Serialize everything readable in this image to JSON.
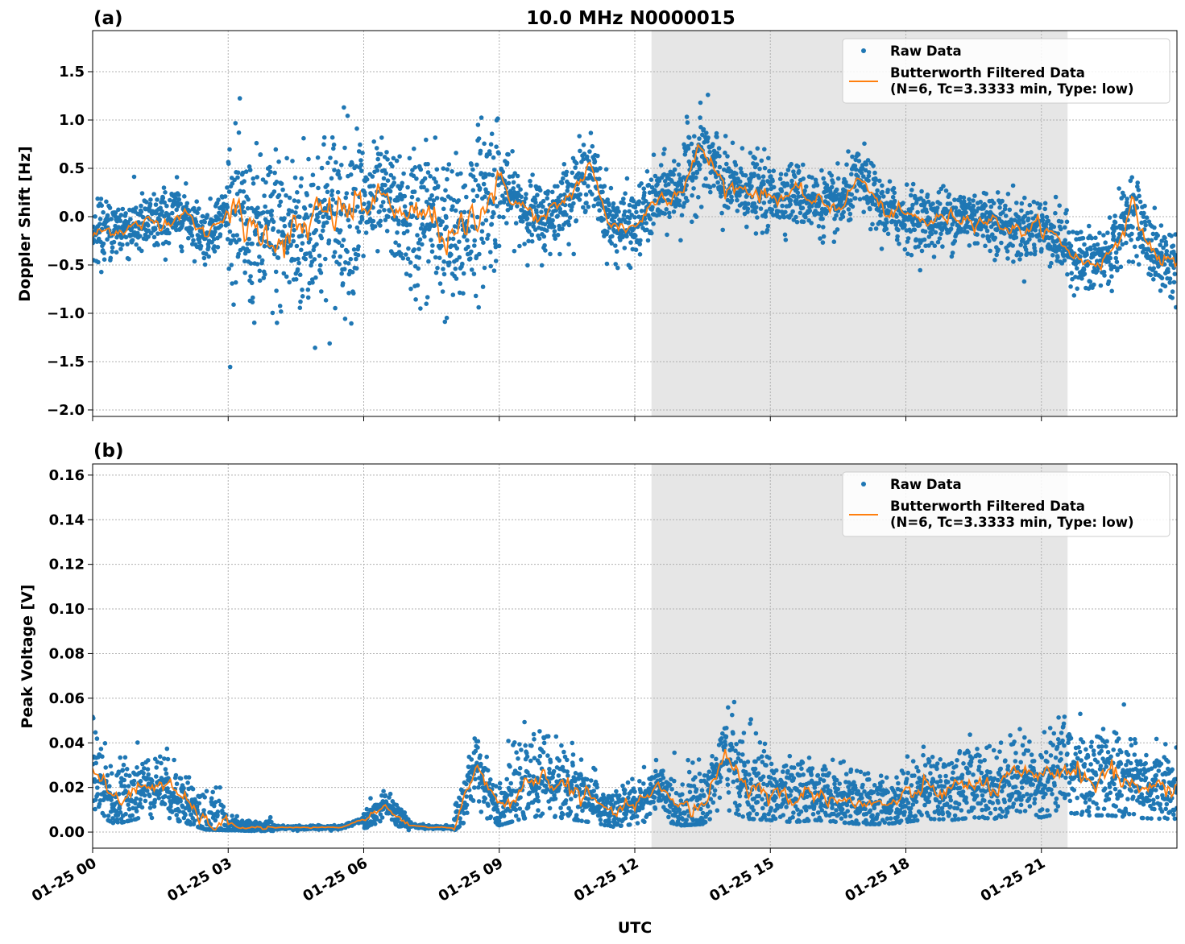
{
  "title": "10.0 MHz N0000015",
  "chart_data": [
    {
      "type": "scatter+line",
      "panel_label": "(a)",
      "ylabel": "Doppler Shift [Hz]",
      "xlabel": "",
      "ylim": [
        -2.067,
        1.925
      ],
      "yticks": [
        -2.0,
        -1.5,
        -1.0,
        -0.5,
        0.0,
        0.5,
        1.0,
        1.5
      ],
      "ytick_labels": [
        "−2.0",
        "−1.5",
        "−1.0",
        "−0.5",
        "0.0",
        "0.5",
        "1.0",
        "1.5"
      ],
      "grid": true,
      "legend_placement": "top-right",
      "legend": [
        "Raw Data",
        "Butterworth Filtered Data",
        "(N=6, Tc=3.3333 min, Type: low)"
      ],
      "shaded_span_hours_utc": [
        12.37,
        21.58
      ],
      "filtered_hours": [
        0,
        0.5,
        1,
        1.5,
        2,
        2.5,
        3,
        3.5,
        4,
        4.5,
        5,
        5.5,
        6,
        6.5,
        7,
        7.5,
        8,
        8.5,
        9,
        9.5,
        10,
        10.5,
        11,
        11.5,
        12,
        12.5,
        13,
        13.5,
        14,
        14.5,
        15,
        15.5,
        16,
        16.5,
        17,
        17.5,
        18,
        18.5,
        19,
        19.5,
        20,
        20.5,
        21,
        21.5,
        22,
        22.5,
        23,
        23.5,
        24
      ],
      "filtered_values": [
        -0.2,
        -0.12,
        -0.1,
        -0.05,
        0.05,
        -0.2,
        0.1,
        -0.2,
        -0.15,
        -0.2,
        -0.05,
        0.05,
        0.1,
        0.2,
        -0.1,
        0.0,
        -0.3,
        0.1,
        0.35,
        0.1,
        -0.05,
        0.2,
        0.5,
        -0.1,
        -0.1,
        0.2,
        0.3,
        0.7,
        0.3,
        0.3,
        0.2,
        0.25,
        0.15,
        0.1,
        0.4,
        0.05,
        0.0,
        -0.05,
        0.0,
        0.0,
        -0.05,
        -0.15,
        -0.1,
        -0.3,
        -0.5,
        -0.4,
        0.1,
        -0.4,
        -0.5
      ],
      "raw_spread_hourly": [
        0.35,
        0.35,
        0.3,
        0.9,
        1.0,
        1.0,
        0.6,
        0.9,
        0.9,
        0.4,
        0.4,
        0.4,
        0.4,
        0.5,
        0.4,
        0.35,
        0.35,
        0.35,
        0.35,
        0.35,
        0.35,
        0.35,
        0.4,
        0.4
      ]
    },
    {
      "type": "scatter+line",
      "panel_label": "(b)",
      "ylabel": "Peak Voltage [V]",
      "xlabel": "UTC",
      "ylim": [
        -0.0072,
        0.165
      ],
      "yticks": [
        0,
        0.02,
        0.04,
        0.06,
        0.08,
        0.1,
        0.12,
        0.14,
        0.16
      ],
      "ytick_labels": [
        "0.00",
        "0.02",
        "0.04",
        "0.06",
        "0.08",
        "0.10",
        "0.12",
        "0.14",
        "0.16"
      ],
      "grid": true,
      "legend_placement": "top-right",
      "legend": [
        "Raw Data",
        "Butterworth Filtered Data",
        "(N=6, Tc=3.3333 min, Type: low)"
      ],
      "shaded_span_hours_utc": [
        12.37,
        21.58
      ],
      "filtered_hours": [
        0,
        0.5,
        1,
        1.5,
        2,
        2.5,
        3,
        3.5,
        4,
        4.5,
        5,
        5.5,
        6,
        6.5,
        7,
        7.5,
        8,
        8.5,
        9,
        9.5,
        10,
        10.5,
        11,
        11.5,
        12,
        12.5,
        13,
        13.5,
        14,
        14.5,
        15,
        15.5,
        16,
        16.5,
        17,
        17.5,
        18,
        18.5,
        19,
        19.5,
        20,
        20.5,
        21,
        21.5,
        22,
        22.5,
        23,
        23.5,
        24
      ],
      "filtered_values": [
        0.03,
        0.012,
        0.02,
        0.022,
        0.015,
        0.004,
        0.003,
        0.002,
        0.002,
        0.002,
        0.002,
        0.002,
        0.006,
        0.012,
        0.003,
        0.002,
        0.002,
        0.03,
        0.01,
        0.02,
        0.025,
        0.02,
        0.015,
        0.008,
        0.012,
        0.02,
        0.01,
        0.012,
        0.035,
        0.02,
        0.018,
        0.015,
        0.018,
        0.015,
        0.012,
        0.012,
        0.015,
        0.02,
        0.018,
        0.022,
        0.02,
        0.025,
        0.022,
        0.03,
        0.025,
        0.025,
        0.022,
        0.02,
        0.02
      ],
      "raw_spread_hourly": [
        0.02,
        0.015,
        0.015,
        0.004,
        0.001,
        0.001,
        0.006,
        0.001,
        0.015,
        0.02,
        0.02,
        0.012,
        0.012,
        0.02,
        0.025,
        0.018,
        0.015,
        0.015,
        0.018,
        0.02,
        0.02,
        0.025,
        0.025,
        0.02
      ]
    }
  ],
  "x_axis": {
    "range_hours_utc": [
      0,
      24
    ],
    "ticks_hours": [
      0,
      3,
      6,
      9,
      12,
      15,
      18,
      21
    ],
    "tick_labels": [
      "01-25 00",
      "01-25 03",
      "01-25 06",
      "01-25 09",
      "01-25 12",
      "01-25 15",
      "01-25 18",
      "01-25 21"
    ]
  },
  "colors": {
    "raw": "#1f77b4",
    "filtered": "#ff7f0e",
    "shade": "#e6e6e6"
  }
}
